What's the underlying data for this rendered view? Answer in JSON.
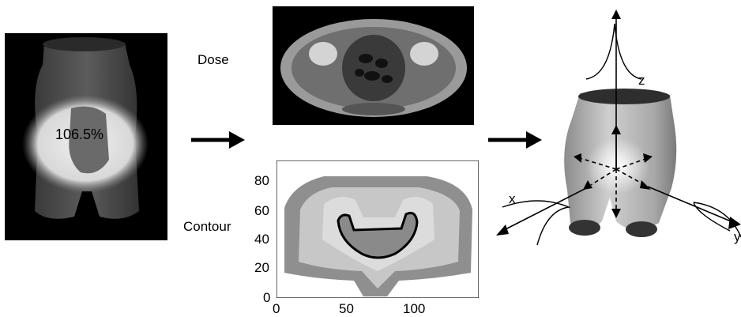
{
  "left_panel": {
    "dose_value": "106.5%"
  },
  "labels": {
    "dose": "Dose",
    "contour": "Contour"
  },
  "contour_plot": {
    "x_ticks": [
      "0",
      "50",
      "100"
    ],
    "y_ticks": [
      "80",
      "60",
      "40",
      "20",
      "0"
    ]
  },
  "axes3d": {
    "x": "x",
    "y": "y",
    "z": "z"
  },
  "colors": {
    "arrow": "#000000",
    "ct_background": "#000000"
  }
}
